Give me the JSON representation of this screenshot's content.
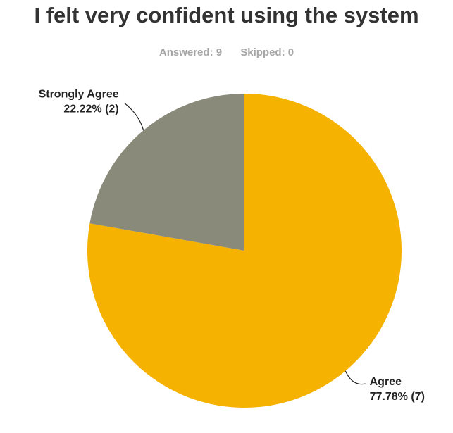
{
  "header": {
    "title": "I felt very confident using the system",
    "answered_text": "Answered: 9",
    "skipped_text": "Skipped: 0"
  },
  "chart_data": {
    "type": "pie",
    "title": "I felt very confident using the system",
    "subtitle": "Answered: 9    Skipped: 0",
    "answered": 9,
    "skipped": 0,
    "start_angle_deg": 0,
    "direction": "clockwise",
    "slices": [
      {
        "name": "Agree",
        "value": 7,
        "percent": 77.78,
        "label_name": "Agree",
        "label_value": "77.78% (7)",
        "color": "#f5b200",
        "label_side": "right"
      },
      {
        "name": "Strongly Agree",
        "value": 2,
        "percent": 22.22,
        "label_name": "Strongly Agree",
        "label_value": "22.22% (2)",
        "color": "#8a8a7a",
        "label_side": "left"
      }
    ]
  }
}
